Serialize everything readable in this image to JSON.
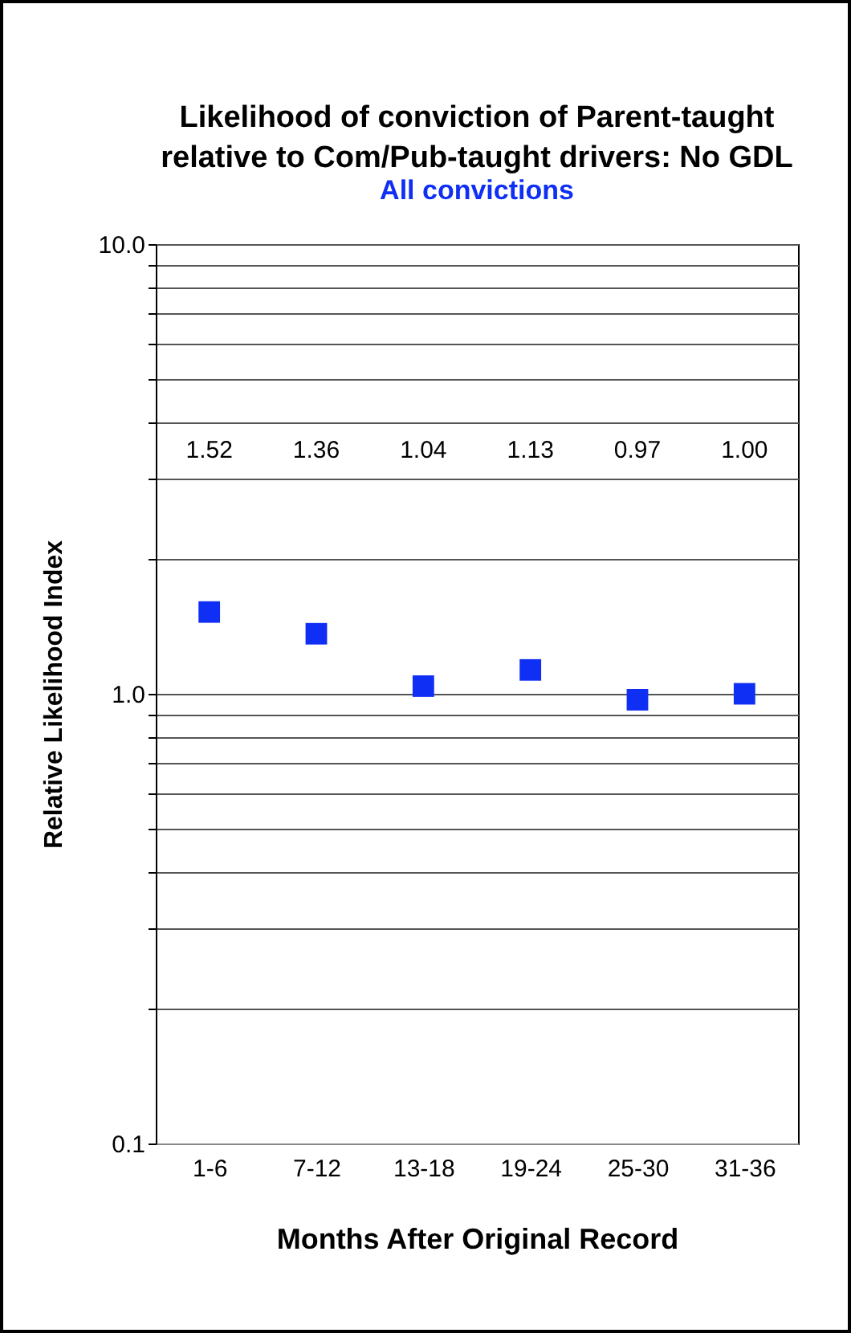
{
  "chart_data": {
    "type": "scatter",
    "title": "Likelihood of conviction of Parent-taught relative to Com/Pub-taught drivers: No GDL",
    "subtitle": "All convictions",
    "xlabel": "Months After Original Record",
    "ylabel": "Relative Likelihood Index",
    "categories": [
      "1-6",
      "7-12",
      "13-18",
      "19-24",
      "25-30",
      "31-36"
    ],
    "series": [
      {
        "color": "#0f2ff5",
        "values": [
          1.52,
          1.36,
          1.04,
          1.13,
          0.97,
          1.0
        ]
      }
    ],
    "log": "y",
    "ylim": [
      0.1,
      10
    ],
    "yticks": [
      {
        "value": 0.1,
        "label": "0.1"
      },
      {
        "value": 0.2,
        "label": null
      },
      {
        "value": 0.3,
        "label": null
      },
      {
        "value": 0.4,
        "label": null
      },
      {
        "value": 0.5,
        "label": null
      },
      {
        "value": 0.6,
        "label": null
      },
      {
        "value": 0.7,
        "label": null
      },
      {
        "value": 0.8,
        "label": null
      },
      {
        "value": 0.9,
        "label": null
      },
      {
        "value": 1,
        "label": "1.0"
      },
      {
        "value": 2,
        "label": null
      },
      {
        "value": 3,
        "label": null
      },
      {
        "value": 4,
        "label": null
      },
      {
        "value": 5,
        "label": null
      },
      {
        "value": 6,
        "label": null
      },
      {
        "value": 7,
        "label": null
      },
      {
        "value": 8,
        "label": null
      },
      {
        "value": 9,
        "label": null
      },
      {
        "value": 10,
        "label": "10.0"
      }
    ],
    "value_labels": [
      "1.52",
      "1.36",
      "1.04",
      "1.13",
      "0.97",
      "1.00"
    ],
    "grid": "y",
    "marker": "square"
  }
}
